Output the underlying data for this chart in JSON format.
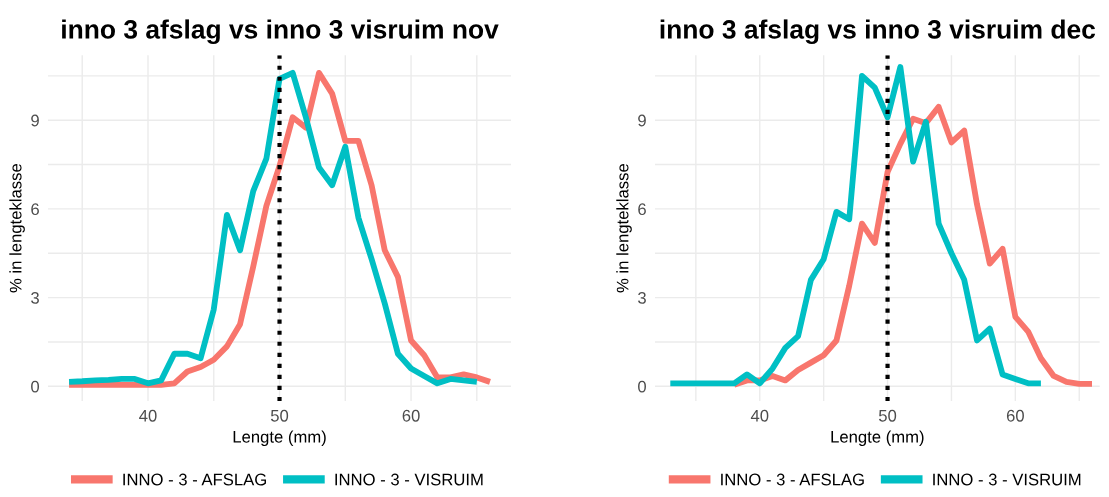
{
  "chart_data": [
    {
      "type": "line",
      "title": "inno 3 afslag vs inno 3 visruim nov",
      "xlabel": "Lengte (mm)",
      "ylabel": "% in lengteklasse",
      "xlim": [
        32.4,
        67.6
      ],
      "ylim": [
        -0.5,
        11.2
      ],
      "xticks": [
        {
          "value": 35,
          "label": null
        },
        40,
        {
          "value": 45,
          "label": null
        },
        50,
        {
          "value": 55,
          "label": null
        },
        60,
        {
          "value": 65,
          "label": null
        }
      ],
      "yticks": [
        0,
        {
          "value": 1.5,
          "label": null
        },
        3,
        {
          "value": 4.5,
          "label": null
        },
        6,
        {
          "value": 7.5,
          "label": null
        },
        9,
        {
          "value": 10.5,
          "label": null
        }
      ],
      "grid": true,
      "legend": "bottom",
      "marker": "none",
      "line_style": "solid",
      "ref_lines": [
        {
          "axis": "x",
          "value": 50,
          "color": "#000000",
          "line_style": "dotted"
        }
      ],
      "series": [
        {
          "name": "INNO - 3 - AFSLAG",
          "color": "#f8766d",
          "x": [
            34,
            35,
            36,
            37,
            38,
            39,
            40,
            41,
            42,
            43,
            44,
            45,
            46,
            47,
            48,
            49,
            50,
            51,
            52,
            53,
            54,
            55,
            56,
            57,
            58,
            59,
            60,
            61,
            62,
            63,
            64,
            65,
            66
          ],
          "values": [
            0.05,
            0.05,
            0.05,
            0.05,
            0.05,
            0.05,
            0.05,
            0.05,
            0.1,
            0.5,
            0.65,
            0.9,
            1.35,
            2.1,
            4.05,
            6.1,
            7.45,
            9.1,
            8.75,
            10.6,
            9.9,
            8.3,
            8.3,
            6.8,
            4.6,
            3.7,
            1.55,
            1.05,
            0.3,
            0.3,
            0.4,
            0.3,
            0.15
          ]
        },
        {
          "name": "INNO - 3 - VISRUIM",
          "color": "#00bfc4",
          "x": [
            34,
            35,
            36,
            37,
            38,
            39,
            40,
            41,
            42,
            43,
            44,
            45,
            46,
            47,
            48,
            49,
            50,
            51,
            52,
            53,
            54,
            55,
            56,
            57,
            58,
            59,
            60,
            61,
            62,
            63,
            64,
            65
          ],
          "values": [
            0.15,
            0.17,
            0.2,
            0.22,
            0.25,
            0.25,
            0.1,
            0.2,
            1.1,
            1.1,
            0.95,
            2.6,
            5.8,
            4.6,
            6.6,
            7.7,
            10.4,
            10.6,
            9.1,
            7.4,
            6.8,
            8.1,
            5.7,
            4.3,
            2.8,
            1.1,
            0.6,
            0.35,
            0.1,
            0.25,
            0.2,
            0.15
          ]
        }
      ]
    },
    {
      "type": "line",
      "title": "inno 3 afslag vs inno 3 visruim dec",
      "xlabel": "Lengte (mm)",
      "ylabel": "% in lengteklasse",
      "xlim": [
        31.8,
        66.6
      ],
      "ylim": [
        -0.5,
        11.2
      ],
      "xticks": [
        {
          "value": 35,
          "label": null
        },
        40,
        {
          "value": 45,
          "label": null
        },
        50,
        {
          "value": 55,
          "label": null
        },
        60,
        {
          "value": 65,
          "label": null
        }
      ],
      "yticks": [
        0,
        {
          "value": 1.5,
          "label": null
        },
        3,
        {
          "value": 4.5,
          "label": null
        },
        6,
        {
          "value": 7.5,
          "label": null
        },
        9,
        {
          "value": 10.5,
          "label": null
        }
      ],
      "grid": true,
      "legend": "bottom",
      "marker": "none",
      "line_style": "solid",
      "ref_lines": [
        {
          "axis": "x",
          "value": 50,
          "color": "#000000",
          "line_style": "dotted"
        }
      ],
      "series": [
        {
          "name": "INNO - 3 - AFSLAG",
          "color": "#f8766d",
          "x": [
            38,
            39,
            40,
            41,
            42,
            43,
            44,
            45,
            46,
            47,
            48,
            49,
            50,
            51,
            52,
            53,
            54,
            55,
            56,
            57,
            58,
            59,
            60,
            61,
            62,
            63,
            64,
            65,
            66
          ],
          "values": [
            0.05,
            0.2,
            0.2,
            0.35,
            0.2,
            0.55,
            0.8,
            1.05,
            1.55,
            3.4,
            5.5,
            4.85,
            7.25,
            8.2,
            9.05,
            8.9,
            9.45,
            8.25,
            8.65,
            6.15,
            4.15,
            4.65,
            2.35,
            1.85,
            0.95,
            0.35,
            0.15,
            0.08,
            0.08
          ]
        },
        {
          "name": "INNO - 3 - VISRUIM",
          "color": "#00bfc4",
          "x": [
            33,
            34,
            35,
            36,
            37,
            38,
            39,
            40,
            41,
            42,
            43,
            44,
            45,
            46,
            47,
            48,
            49,
            50,
            51,
            52,
            53,
            54,
            55,
            56,
            57,
            58,
            59,
            60,
            61,
            62
          ],
          "values": [
            0.1,
            0.1,
            0.1,
            0.1,
            0.1,
            0.1,
            0.4,
            0.1,
            0.6,
            1.3,
            1.7,
            3.6,
            4.3,
            5.9,
            5.65,
            10.5,
            10.1,
            9.1,
            10.8,
            7.6,
            8.95,
            5.5,
            4.5,
            3.6,
            1.55,
            1.95,
            0.4,
            0.25,
            0.1,
            0.1
          ]
        }
      ]
    }
  ]
}
